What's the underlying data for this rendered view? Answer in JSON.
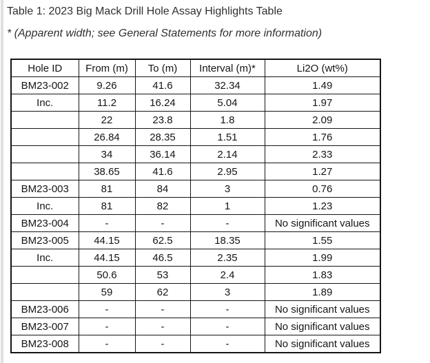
{
  "page": {
    "title": "Table 1: 2023 Big Mack Drill Hole Assay Highlights Table",
    "footnote": "* (Apparent width; see General Statements for more information)"
  },
  "table": {
    "columns": [
      "Hole ID",
      "From (m)",
      "To (m)",
      "Interval (m)*",
      "Li2O (wt%)"
    ],
    "rows": [
      [
        "BM23-002",
        "9.26",
        "41.6",
        "32.34",
        "1.49"
      ],
      [
        "Inc.",
        "11.2",
        "16.24",
        "5.04",
        "1.97"
      ],
      [
        "",
        "22",
        "23.8",
        "1.8",
        "2.09"
      ],
      [
        "",
        "26.84",
        "28.35",
        "1.51",
        "1.76"
      ],
      [
        "",
        "34",
        "36.14",
        "2.14",
        "2.33"
      ],
      [
        "",
        "38.65",
        "41.6",
        "2.95",
        "1.27"
      ],
      [
        "BM23-003",
        "81",
        "84",
        "3",
        "0.76"
      ],
      [
        "Inc.",
        "81",
        "82",
        "1",
        "1.23"
      ],
      [
        "BM23-004",
        "-",
        "-",
        "-",
        "No significant values"
      ],
      [
        "BM23-005",
        "44.15",
        "62.5",
        "18.35",
        "1.55"
      ],
      [
        "Inc.",
        "44.15",
        "46.5",
        "2.35",
        "1.99"
      ],
      [
        "",
        "50.6",
        "53",
        "2.4",
        "1.83"
      ],
      [
        "",
        "59",
        "62",
        "3",
        "1.89"
      ],
      [
        "BM23-006",
        "-",
        "-",
        "-",
        "No significant values"
      ],
      [
        "BM23-007",
        "-",
        "-",
        "-",
        "No significant values"
      ],
      [
        "BM23-008",
        "-",
        "-",
        "-",
        "No significant values"
      ]
    ]
  },
  "colors": {
    "background": "#ffffff",
    "left_bar": "#e0e0e0",
    "table_border": "#141414",
    "table_text": "#151515",
    "caption_text": "#303030"
  }
}
